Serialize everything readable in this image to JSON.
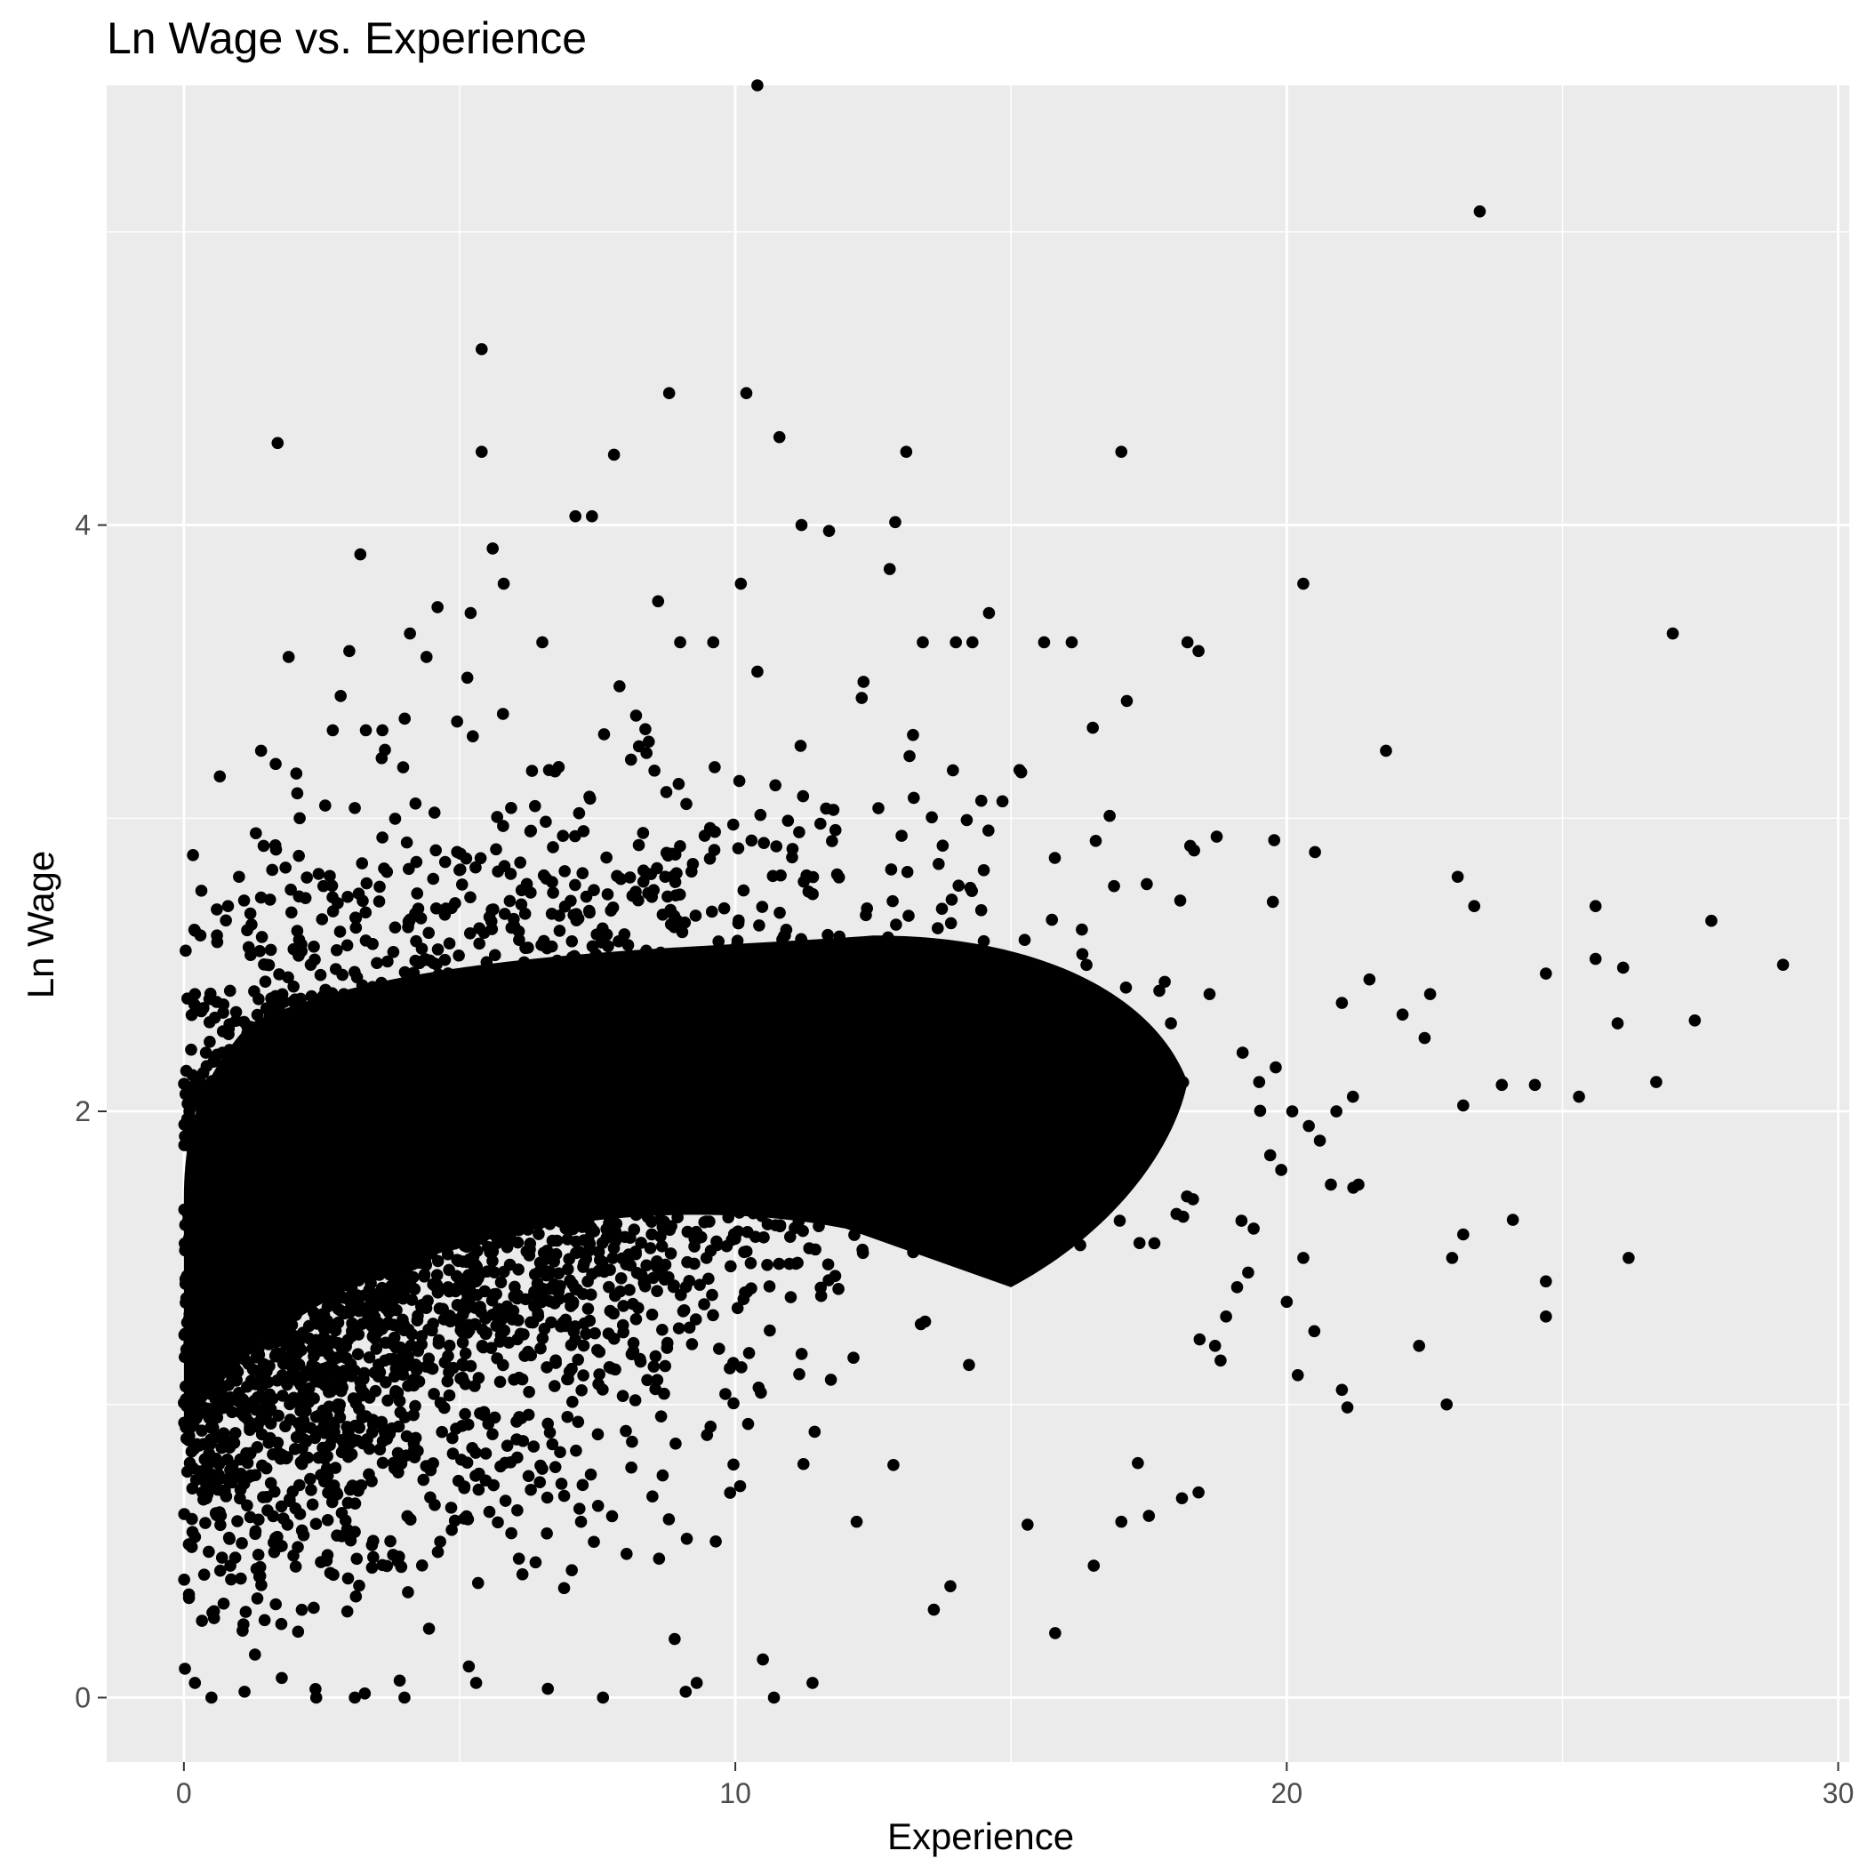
{
  "chart_data": {
    "type": "scatter",
    "title": "Ln Wage vs. Experience",
    "xlabel": "Experience",
    "ylabel": "Ln Wage",
    "xlim": [
      -1.4,
      30.2
    ],
    "ylim": [
      -0.22,
      5.5
    ],
    "x_ticks": [
      0,
      10,
      20,
      30
    ],
    "x_tick_labels": [
      "0",
      "10",
      "20",
      "30"
    ],
    "y_ticks": [
      0,
      2,
      4
    ],
    "y_tick_labels": [
      "0",
      "2",
      "4"
    ],
    "x_minor_gridlines": [
      5,
      15,
      25
    ],
    "y_minor_gridlines": [
      1,
      3,
      5
    ],
    "grid": true,
    "legend": "none",
    "colors": {
      "panel_background": "#EBEBEB",
      "gridline": "#FFFFFF",
      "point": "#000000",
      "tick_label": "#4D4D4D",
      "tick_mark": "#333333"
    },
    "series": [
      {
        "points_description_note_excluded": true,
        "x": [
          10.4,
          23.5,
          5.4,
          8.8,
          10.2,
          10.8,
          1.7,
          5.4,
          7.8,
          13.1,
          17.0,
          7.1,
          7.4,
          11.7,
          11.2,
          12.9,
          3.2,
          5.6,
          12.8,
          10.1,
          8.6,
          5.2,
          5.8,
          4.6,
          4.1,
          1.9,
          3.0,
          2.7,
          4.4,
          9.0,
          9.6,
          10.4,
          6.5,
          3.6,
          8.2,
          7.9,
          14.6,
          15.6,
          16.1,
          14.0,
          14.3,
          13.4,
          18.2,
          18.4,
          20.3,
          27.0,
          21.8,
          17.1,
          1.4,
          2.1,
          3.3,
          4.2,
          0.1,
          0.3,
          0.6,
          1.0,
          1.5,
          0.2,
          0.4,
          0.8,
          23.1,
          23.4,
          25.6,
          27.7,
          29.0,
          24.7,
          25.6,
          26.1,
          22.1,
          22.6,
          22.5,
          23.9,
          24.5,
          25.3,
          26.7,
          23.2,
          27.4,
          26.0,
          21.0,
          21.5,
          24.1,
          24.7,
          26.2,
          23.2,
          22.9,
          24.7,
          22.4,
          23.0,
          21.1,
          18.4,
          18.1,
          17.5,
          17.3,
          17.0,
          16.5,
          15.8,
          15.3,
          13.6,
          13.9,
          12.2,
          11.4,
          10.7,
          10.5,
          9.3,
          9.1,
          8.9,
          7.6,
          6.6,
          5.3,
          4.0,
          3.1,
          2.4,
          1.1,
          0.5,
          0.2,
          15.8,
          15.9,
          11.4,
          10.9,
          10.1,
          8.9,
          9.4,
          7.5,
          6.4,
          2.3,
          2.9,
          1.5,
          0.7,
          0.3,
          0.1,
          19.5,
          20.1,
          19.9,
          20.4,
          19.2,
          18.6,
          20.8,
          21.2,
          19.7,
          20.3,
          18.9,
          19.1,
          20.6,
          21.3,
          20.9,
          19.4,
          18.3,
          17.9,
          18.7,
          17.6,
          19.8,
          20.0,
          18.0,
          21.0,
          20.5,
          19.3,
          18.8,
          20.2
        ],
        "y": [
          5.5,
          5.07,
          4.6,
          4.45,
          4.45,
          4.3,
          4.28,
          4.25,
          4.24,
          4.25,
          4.25,
          4.03,
          4.03,
          3.98,
          4.0,
          4.01,
          3.9,
          3.92,
          3.85,
          3.8,
          3.74,
          3.7,
          3.8,
          3.72,
          3.63,
          3.55,
          3.57,
          3.3,
          3.55,
          3.6,
          3.6,
          3.5,
          3.6,
          3.3,
          3.35,
          3.45,
          3.7,
          3.6,
          3.6,
          3.6,
          3.6,
          3.6,
          3.6,
          3.57,
          3.8,
          3.63,
          3.23,
          3.4,
          3.23,
          3.0,
          3.3,
          3.05,
          2.0,
          2.6,
          2.6,
          2.8,
          2.5,
          2.4,
          2.2,
          2.7,
          2.8,
          2.7,
          2.7,
          2.65,
          2.5,
          2.47,
          2.52,
          2.49,
          2.33,
          2.4,
          2.25,
          2.09,
          2.09,
          2.05,
          2.1,
          2.02,
          2.31,
          2.3,
          2.37,
          2.45,
          1.63,
          1.42,
          1.5,
          1.58,
          1.0,
          1.3,
          1.2,
          1.5,
          0.99,
          0.7,
          0.68,
          0.62,
          0.8,
          0.6,
          0.45,
          0.22,
          0.59,
          0.3,
          0.38,
          0.6,
          0.05,
          0.0,
          0.13,
          0.05,
          0.02,
          0.2,
          0.0,
          0.03,
          0.05,
          0.0,
          0.0,
          0.0,
          0.02,
          0.0,
          0.05,
          2.3,
          2.1,
          2.5,
          2.6,
          2.2,
          2.4,
          2.3,
          2.45,
          2.35,
          2.5,
          2.4,
          2.35,
          2.2,
          2.1,
          1.9,
          2.1,
          2.0,
          1.8,
          1.95,
          2.2,
          2.4,
          1.75,
          2.05,
          1.85,
          1.5,
          1.3,
          1.4,
          1.9,
          1.75,
          2.0,
          1.6,
          1.7,
          2.3,
          1.2,
          1.55,
          2.15,
          1.35,
          1.65,
          1.05,
          1.25,
          1.45,
          1.15,
          1.1
        ]
      }
    ]
  }
}
